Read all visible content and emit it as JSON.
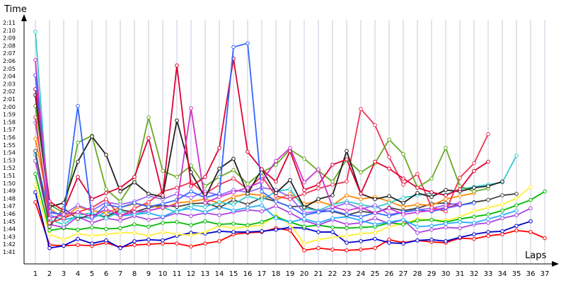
{
  "chart_data": {
    "type": "line",
    "xlabel": "Laps",
    "ylabel": "Time",
    "grid": true,
    "x": [
      1,
      2,
      3,
      4,
      5,
      6,
      7,
      8,
      9,
      10,
      11,
      12,
      13,
      14,
      15,
      16,
      17,
      18,
      19,
      20,
      21,
      22,
      23,
      24,
      25,
      26,
      27,
      28,
      29,
      30,
      31,
      32,
      33,
      34,
      35,
      36,
      37
    ],
    "y_ticks": [
      "1:41",
      "1:42",
      "1:43",
      "1:44",
      "1:45",
      "1:46",
      "1:47",
      "1:48",
      "1:49",
      "1:50",
      "1:51",
      "1:52",
      "1:53",
      "1:54",
      "1:55",
      "1:56",
      "1:57",
      "1:58",
      "1:59",
      "2:00",
      "2:01",
      "2:02",
      "2:03",
      "2:04",
      "2:05",
      "2:06",
      "2:07",
      "2:08",
      "2:09",
      "2:10",
      "2:11"
    ],
    "ylim_seconds": [
      101,
      131
    ],
    "series": [
      {
        "color": "#ff0000",
        "values": [
          107.5,
          101.9,
          101.8,
          101.9,
          101.8,
          102.2,
          101.6,
          101.9,
          102,
          102.1,
          102.1,
          101.7,
          102.1,
          102.4,
          103.3,
          103.5,
          103.6,
          104.1,
          103.8,
          101.2,
          101.5,
          101.3,
          101.2,
          101.3,
          101.5,
          102.6,
          102.2,
          102.5,
          102.3,
          102.2,
          102.8,
          102.7,
          103.1,
          103.3,
          103.8,
          103.6,
          102.8
        ]
      },
      {
        "color": "#0000cc",
        "values": [
          108.8,
          101.5,
          101.8,
          102.7,
          102.1,
          102.5,
          101.5,
          102.4,
          102.6,
          102.5,
          103.1,
          103.5,
          103.4,
          103.7,
          103.6,
          103.6,
          103.7,
          103.9,
          104.2,
          104.1,
          103.6,
          103.6,
          102.2,
          102.4,
          102.7,
          102.2,
          102.1,
          102.5,
          102.6,
          102.4,
          102.9,
          103.3,
          103.6,
          103.7,
          104.4,
          105.0,
          null
        ]
      },
      {
        "color": "#ffee33",
        "values": [
          109.8,
          103.3,
          102.6,
          103.4,
          103.1,
          103.3,
          103.5,
          103.5,
          103.1,
          103.6,
          103.3,
          103.2,
          103.6,
          104.4,
          104.1,
          104.3,
          104.5,
          105.8,
          104.6,
          102.1,
          102.6,
          102.9,
          103.1,
          103.4,
          103.5,
          104.3,
          104.7,
          105.3,
          105.2,
          105.1,
          105.6,
          106.3,
          106.8,
          107.2,
          108.0,
          109.5,
          null
        ]
      },
      {
        "color": "#00bb00",
        "values": [
          111.2,
          103.8,
          104.1,
          103.9,
          104.2,
          104.0,
          104.1,
          104.6,
          104.3,
          104.8,
          104.9,
          104.5,
          105.0,
          104.6,
          104.7,
          104.5,
          104.9,
          105.6,
          104.9,
          104.3,
          104.5,
          104.2,
          104.1,
          104.2,
          104.3,
          104.8,
          104.6,
          105.1,
          105.2,
          104.9,
          105.3,
          105.6,
          105.9,
          106.4,
          107.1,
          107.8,
          108.9
        ]
      },
      {
        "color": "#aa44dd",
        "values": [
          112.9,
          104.6,
          104.2,
          105.6,
          104.8,
          105.4,
          105.1,
          105.7,
          105.2,
          105.5,
          106.1,
          105.7,
          106.1,
          105.8,
          106.2,
          106.5,
          106.3,
          107.0,
          106.1,
          105.1,
          104.5,
          105.2,
          104.6,
          104.8,
          105.4,
          104.7,
          105.2,
          103.5,
          103.9,
          104.2,
          104.1,
          104.6,
          104.8,
          105.4,
          105.8,
          106.7,
          null
        ]
      },
      {
        "color": "#22aaff",
        "values": [
          113.7,
          105.8,
          105.2,
          105.6,
          105.4,
          106.2,
          105.7,
          105.9,
          106.1,
          105.6,
          106.4,
          106.7,
          106.2,
          106.9,
          106.4,
          106.8,
          107.1,
          105.4,
          104.9,
          105.3,
          104.8,
          105.4,
          105.6,
          105.1,
          104.6,
          104.9,
          105.2,
          104.3,
          104.4,
          104.7,
          104.9,
          104.8,
          105.3,
          105.8,
          106.4,
          null,
          null
        ]
      },
      {
        "color": "#444444",
        "values": [
          114.2,
          104.3,
          106.7,
          105.3,
          105.9,
          105.6,
          106.5,
          106.2,
          106.8,
          107.1,
          106.9,
          107.3,
          107.4,
          106.8,
          107.8,
          107.2,
          108.1,
          107.6,
          106.9,
          107.0,
          106.4,
          106.3,
          105.8,
          106.3,
          106.1,
          106.8,
          106.4,
          106.7,
          107.3,
          107.4,
          107.1,
          107.5,
          107.8,
          108.4,
          108.6,
          null,
          null
        ]
      },
      {
        "color": "#ff8800",
        "values": [
          115.8,
          106.7,
          105.4,
          106.9,
          106.4,
          106.1,
          106.8,
          107.3,
          107.1,
          106.7,
          107.4,
          107.6,
          107.9,
          107.4,
          108.2,
          108.6,
          108.4,
          107.8,
          108.6,
          107.3,
          107.6,
          107.1,
          108.4,
          107.9,
          108.2,
          107.6,
          106.9,
          107.2,
          107.1,
          107.9,
          108.3,
          108.7,
          null,
          null,
          null,
          null,
          null
        ]
      },
      {
        "color": "#33cccc",
        "values": [
          129.8,
          105.2,
          104.6,
          105.8,
          106.1,
          105.4,
          106.3,
          105.9,
          106.4,
          106.8,
          106.2,
          107.1,
          106.9,
          107.5,
          107.2,
          108.3,
          107.8,
          108.9,
          109.2,
          106.7,
          106.4,
          107.2,
          107.6,
          107.2,
          106.8,
          107.4,
          108.1,
          108.4,
          108.7,
          108.5,
          109.2,
          109.5,
          109.8,
          110.1,
          113.6,
          null,
          null
        ]
      },
      {
        "color": "#9966ff",
        "values": [
          117.9,
          106.1,
          105.9,
          107.1,
          106.4,
          107.5,
          107.2,
          107.6,
          108.3,
          107.9,
          108.6,
          108.1,
          108.9,
          108.4,
          109.1,
          108.8,
          109.4,
          109.1,
          108.2,
          106.1,
          106.3,
          106.8,
          107.4,
          106.6,
          107.1,
          105.9,
          106.2,
          106.5,
          106.7,
          107.1,
          107.4,
          null,
          null,
          null,
          null,
          null,
          null
        ]
      },
      {
        "color": "#ee3355",
        "values": [
          118.6,
          104.8,
          105.4,
          106.2,
          106.8,
          107.9,
          105.6,
          106.7,
          107.5,
          108.9,
          109.4,
          110.1,
          108.6,
          109.8,
          110.6,
          109.2,
          110.9,
          108.3,
          107.9,
          108.6,
          109.3,
          109.8,
          110.2,
          119.7,
          117.6,
          113.4,
          109.8,
          111.2,
          106.8,
          106.3,
          110.7,
          112.6,
          116.4,
          null,
          null,
          null,
          null
        ]
      },
      {
        "color": "#66aa22",
        "values": [
          120.1,
          107.2,
          106.1,
          115.3,
          116.2,
          109.2,
          107.6,
          110.4,
          118.6,
          111.6,
          110.8,
          112.3,
          109.6,
          110.8,
          111.7,
          109.9,
          111.4,
          112.4,
          114.4,
          113.2,
          111.6,
          110.2,
          113.1,
          111.4,
          112.6,
          115.7,
          113.8,
          109.4,
          110.6,
          114.6,
          109.6,
          108.9,
          109.3,
          null,
          null,
          null,
          null
        ]
      },
      {
        "color": "#222222",
        "values": [
          121.5,
          106.9,
          107.4,
          112.8,
          116.1,
          113.7,
          108.9,
          110.1,
          108.6,
          108.2,
          118.2,
          111.4,
          108.1,
          111.9,
          113.2,
          108.6,
          111.8,
          108.7,
          110.4,
          106.8,
          107.9,
          108.4,
          114.2,
          108.6,
          107.9,
          108.3,
          107.4,
          108.7,
          108.2,
          109.1,
          108.9,
          109.4,
          109.6,
          110.2,
          null,
          null,
          null
        ]
      },
      {
        "color": "#dd0033",
        "values": [
          122.3,
          107.6,
          106.4,
          110.8,
          107.9,
          108.7,
          109.4,
          110.8,
          115.9,
          108.4,
          125.4,
          109.6,
          110.8,
          114.6,
          126.3,
          114.1,
          111.8,
          110.2,
          114.2,
          109.1,
          109.8,
          112.4,
          113.1,
          108.6,
          112.8,
          111.9,
          110.6,
          109.4,
          108.8,
          108.4,
          109.2,
          111.6,
          112.8,
          null,
          null,
          null,
          null
        ]
      },
      {
        "color": "#3366ff",
        "values": [
          124.1,
          106.3,
          105.8,
          120.1,
          105.4,
          107.2,
          106.8,
          107.4,
          106.9,
          107.3,
          107.8,
          108.9,
          108.1,
          108.6,
          127.8,
          128.3,
          108.9,
          107.6,
          106.9,
          105.8,
          106.2,
          106.4,
          105.9,
          105.6,
          106.1,
          105.7,
          106.2,
          106.5,
          106.3,
          106.7,
          107.1,
          107.4,
          null,
          null,
          null,
          null,
          null
        ]
      },
      {
        "color": "#cc33cc",
        "values": [
          126.1,
          105.4,
          105.9,
          106.2,
          105.6,
          106.6,
          105.8,
          106.2,
          106.4,
          106.8,
          107.2,
          119.8,
          107.4,
          108.2,
          108.8,
          109.4,
          110.2,
          112.9,
          114.6,
          110.1,
          111.8,
          106.9,
          106.4,
          106.8,
          106.1,
          106.7,
          105.9,
          106.2,
          106.4,
          106.8,
          107.2,
          null,
          null,
          null,
          null,
          null,
          null
        ]
      }
    ]
  }
}
